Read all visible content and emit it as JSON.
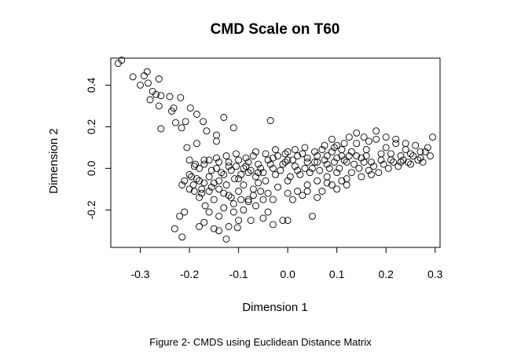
{
  "chart_data": {
    "type": "scatter",
    "title": "CMD Scale on T60",
    "xlabel": "Dimension 1",
    "ylabel": "Dimension 2",
    "xlim": [
      -0.36,
      0.31
    ],
    "ylim": [
      -0.38,
      0.53
    ],
    "xticks": [
      -0.3,
      -0.2,
      -0.1,
      0.0,
      0.1,
      0.2,
      0.3
    ],
    "xtick_labels": [
      "-0.3",
      "-0.2",
      "-0.1",
      "0.0",
      "0.1",
      "0.2",
      "0.3"
    ],
    "yticks": [
      -0.2,
      0.0,
      0.2,
      0.4
    ],
    "ytick_labels": [
      "-0.2",
      "0.0",
      "0.2",
      "0.4"
    ],
    "grid": false,
    "marker": "open-circle",
    "color": "#000000",
    "points": [
      [
        -0.345,
        0.505
      ],
      [
        -0.338,
        0.52
      ],
      [
        -0.315,
        0.44
      ],
      [
        -0.3,
        0.4
      ],
      [
        -0.292,
        0.445
      ],
      [
        -0.286,
        0.465
      ],
      [
        -0.284,
        0.41
      ],
      [
        -0.275,
        0.37
      ],
      [
        -0.268,
        0.355
      ],
      [
        -0.262,
        0.43
      ],
      [
        -0.258,
        0.35
      ],
      [
        -0.28,
        0.33
      ],
      [
        -0.262,
        0.3
      ],
      [
        -0.24,
        0.345
      ],
      [
        -0.232,
        0.29
      ],
      [
        -0.236,
        0.275
      ],
      [
        -0.218,
        0.34
      ],
      [
        -0.208,
        0.225
      ],
      [
        -0.198,
        0.29
      ],
      [
        -0.185,
        0.26
      ],
      [
        -0.172,
        0.225
      ],
      [
        -0.228,
        0.22
      ],
      [
        -0.216,
        0.195
      ],
      [
        -0.258,
        0.19
      ],
      [
        -0.165,
        0.18
      ],
      [
        -0.145,
        0.16
      ],
      [
        -0.13,
        0.245
      ],
      [
        -0.11,
        0.195
      ],
      [
        -0.185,
        0.12
      ],
      [
        -0.205,
        0.1
      ],
      [
        -0.145,
        0.13
      ],
      [
        -0.035,
        0.23
      ],
      [
        -0.2,
        0.04
      ],
      [
        -0.188,
        0.02
      ],
      [
        -0.196,
        -0.04
      ],
      [
        -0.21,
        -0.06
      ],
      [
        -0.192,
        -0.08
      ],
      [
        -0.18,
        -0.06
      ],
      [
        -0.175,
        -0.1
      ],
      [
        -0.16,
        -0.04
      ],
      [
        -0.15,
        -0.07
      ],
      [
        -0.14,
        -0.1
      ],
      [
        -0.13,
        -0.03
      ],
      [
        -0.125,
        -0.08
      ],
      [
        -0.12,
        -0.13
      ],
      [
        -0.108,
        -0.05
      ],
      [
        -0.11,
        -0.17
      ],
      [
        -0.15,
        -0.15
      ],
      [
        -0.168,
        -0.18
      ],
      [
        -0.18,
        -0.14
      ],
      [
        -0.21,
        -0.21
      ],
      [
        -0.22,
        -0.23
      ],
      [
        -0.23,
        -0.29
      ],
      [
        -0.215,
        -0.33
      ],
      [
        -0.18,
        -0.28
      ],
      [
        -0.17,
        -0.26
      ],
      [
        -0.15,
        -0.29
      ],
      [
        -0.14,
        -0.3
      ],
      [
        -0.12,
        -0.28
      ],
      [
        -0.102,
        -0.285
      ],
      [
        -0.125,
        -0.34
      ],
      [
        -0.09,
        -0.2
      ],
      [
        -0.08,
        -0.15
      ],
      [
        -0.065,
        -0.18
      ],
      [
        -0.05,
        -0.24
      ],
      [
        -0.04,
        -0.21
      ],
      [
        -0.03,
        -0.27
      ],
      [
        -0.01,
        -0.25
      ],
      [
        0.0,
        -0.25
      ],
      [
        -0.075,
        -0.25
      ],
      [
        -0.16,
        0.04
      ],
      [
        -0.14,
        0.03
      ],
      [
        -0.12,
        0.01
      ],
      [
        -0.1,
        0.04
      ],
      [
        -0.09,
        0.0
      ],
      [
        -0.08,
        0.03
      ],
      [
        -0.07,
        0.06
      ],
      [
        -0.06,
        0.02
      ],
      [
        -0.05,
        -0.02
      ],
      [
        -0.04,
        0.04
      ],
      [
        -0.03,
        0.0
      ],
      [
        -0.02,
        0.06
      ],
      [
        -0.01,
        0.02
      ],
      [
        0.0,
        0.08
      ],
      [
        0.01,
        0.04
      ],
      [
        0.02,
        -0.01
      ],
      [
        0.03,
        0.07
      ],
      [
        0.04,
        0.03
      ],
      [
        0.05,
        0.0
      ],
      [
        0.06,
        0.06
      ],
      [
        0.07,
        0.09
      ],
      [
        0.08,
        0.02
      ],
      [
        0.09,
        0.14
      ],
      [
        0.1,
        0.05
      ],
      [
        0.11,
        0.09
      ],
      [
        -0.18,
        0.0
      ],
      [
        -0.17,
        0.02
      ],
      [
        -0.155,
        -0.01
      ],
      [
        -0.145,
        0.0
      ],
      [
        -0.135,
        -0.02
      ],
      [
        -0.115,
        -0.01
      ],
      [
        -0.105,
        0.01
      ],
      [
        -0.095,
        -0.03
      ],
      [
        -0.085,
        0.01
      ],
      [
        -0.075,
        -0.01
      ],
      [
        -0.065,
        -0.04
      ],
      [
        -0.055,
        0.0
      ],
      [
        -0.045,
        -0.06
      ],
      [
        -0.035,
        0.02
      ],
      [
        -0.025,
        -0.03
      ],
      [
        -0.015,
        -0.01
      ],
      [
        -0.005,
        0.03
      ],
      [
        0.005,
        -0.04
      ],
      [
        0.015,
        0.01
      ],
      [
        0.025,
        -0.03
      ],
      [
        0.035,
        0.0
      ],
      [
        0.045,
        -0.02
      ],
      [
        0.055,
        0.03
      ],
      [
        0.065,
        -0.01
      ],
      [
        0.075,
        0.04
      ],
      [
        0.085,
        0.0
      ],
      [
        0.095,
        0.03
      ],
      [
        0.105,
        0.0
      ],
      [
        0.115,
        0.04
      ],
      [
        0.125,
        0.06
      ],
      [
        -0.09,
        -0.08
      ],
      [
        -0.07,
        -0.1
      ],
      [
        -0.06,
        -0.07
      ],
      [
        -0.04,
        -0.12
      ],
      [
        -0.02,
        -0.09
      ],
      [
        0.0,
        -0.06
      ],
      [
        0.02,
        -0.11
      ],
      [
        0.04,
        -0.08
      ],
      [
        0.06,
        -0.14
      ],
      [
        0.08,
        -0.07
      ],
      [
        0.1,
        -0.1
      ],
      [
        0.12,
        -0.05
      ],
      [
        -0.08,
        -0.16
      ],
      [
        -0.05,
        -0.15
      ],
      [
        0.01,
        -0.15
      ],
      [
        0.03,
        -0.13
      ],
      [
        0.05,
        -0.23
      ],
      [
        0.07,
        -0.11
      ],
      [
        0.09,
        -0.08
      ],
      [
        0.11,
        -0.06
      ],
      [
        0.13,
        0.08
      ],
      [
        0.14,
        0.12
      ],
      [
        0.15,
        0.05
      ],
      [
        0.16,
        0.09
      ],
      [
        0.17,
        0.03
      ],
      [
        0.18,
        0.14
      ],
      [
        0.19,
        0.07
      ],
      [
        0.2,
        0.1
      ],
      [
        0.21,
        0.04
      ],
      [
        0.22,
        0.12
      ],
      [
        0.23,
        0.06
      ],
      [
        0.24,
        0.09
      ],
      [
        0.25,
        0.02
      ],
      [
        0.26,
        0.11
      ],
      [
        0.27,
        0.05
      ],
      [
        0.28,
        0.08
      ],
      [
        0.29,
        0.06
      ],
      [
        0.295,
        0.15
      ],
      [
        0.135,
        0.02
      ],
      [
        0.145,
        0.0
      ],
      [
        0.155,
        0.03
      ],
      [
        0.165,
        -0.01
      ],
      [
        0.175,
        0.01
      ],
      [
        0.185,
        -0.02
      ],
      [
        0.195,
        0.02
      ],
      [
        0.205,
        0.0
      ],
      [
        0.215,
        0.03
      ],
      [
        0.225,
        0.01
      ],
      [
        0.235,
        0.04
      ],
      [
        0.245,
        0.03
      ],
      [
        0.255,
        0.06
      ],
      [
        0.265,
        0.04
      ],
      [
        0.275,
        0.03
      ],
      [
        0.285,
        0.1
      ],
      [
        0.14,
        0.17
      ],
      [
        0.155,
        0.15
      ],
      [
        0.165,
        0.13
      ],
      [
        0.18,
        0.18
      ],
      [
        0.2,
        0.15
      ],
      [
        0.22,
        0.14
      ],
      [
        0.24,
        0.12
      ],
      [
        0.13,
        -0.02
      ],
      [
        0.15,
        -0.04
      ],
      [
        0.17,
        -0.03
      ],
      [
        0.12,
        -0.08
      ],
      [
        -0.145,
        0.05
      ],
      [
        -0.125,
        0.06
      ],
      [
        -0.105,
        0.07
      ],
      [
        -0.085,
        0.05
      ],
      [
        -0.065,
        0.08
      ],
      [
        -0.045,
        0.07
      ],
      [
        -0.025,
        0.09
      ],
      [
        -0.005,
        0.07
      ],
      [
        0.015,
        0.09
      ],
      [
        0.035,
        0.1
      ],
      [
        0.055,
        0.08
      ],
      [
        0.075,
        0.11
      ],
      [
        0.095,
        0.1
      ],
      [
        0.115,
        0.12
      ],
      [
        0.125,
        0.15
      ],
      [
        -0.2,
        -0.03
      ],
      [
        -0.185,
        -0.05
      ],
      [
        -0.17,
        -0.07
      ],
      [
        -0.155,
        -0.09
      ],
      [
        -0.14,
        -0.06
      ],
      [
        -0.19,
        -0.11
      ],
      [
        -0.175,
        -0.12
      ],
      [
        -0.16,
        -0.11
      ],
      [
        -0.13,
        -0.12
      ],
      [
        -0.115,
        -0.14
      ],
      [
        -0.1,
        -0.11
      ],
      [
        -0.095,
        -0.15
      ],
      [
        -0.07,
        -0.13
      ],
      [
        -0.055,
        -0.11
      ],
      [
        -0.03,
        -0.15
      ],
      [
        0.0,
        -0.12
      ],
      [
        0.04,
        -0.11
      ],
      [
        0.06,
        -0.06
      ],
      [
        0.08,
        -0.04
      ],
      [
        0.1,
        -0.02
      ],
      [
        -0.215,
        -0.08
      ],
      [
        -0.2,
        -0.1
      ],
      [
        -0.19,
        0.01
      ],
      [
        -0.17,
        0.04
      ],
      [
        -0.12,
        0.03
      ],
      [
        -0.1,
        -0.05
      ],
      [
        -0.08,
        -0.02
      ],
      [
        -0.06,
        -0.02
      ],
      [
        -0.03,
        0.05
      ],
      [
        0.0,
        0.04
      ],
      [
        0.02,
        0.06
      ],
      [
        0.04,
        0.05
      ],
      [
        0.06,
        0.03
      ],
      [
        0.08,
        0.06
      ],
      [
        0.09,
        0.08
      ],
      [
        0.1,
        0.11
      ],
      [
        0.11,
        0.06
      ],
      [
        0.12,
        0.03
      ],
      [
        0.14,
        0.06
      ],
      [
        0.16,
        0.06
      ],
      [
        0.19,
        0.04
      ],
      [
        0.21,
        0.07
      ],
      [
        0.23,
        0.03
      ],
      [
        0.25,
        0.07
      ],
      [
        0.27,
        0.08
      ],
      [
        -0.13,
        -0.19
      ],
      [
        -0.11,
        -0.21
      ],
      [
        -0.14,
        -0.23
      ],
      [
        -0.16,
        -0.21
      ],
      [
        -0.1,
        -0.25
      ]
    ]
  },
  "caption": "Figure 2- CMDS using Euclidean Distance Matrix"
}
